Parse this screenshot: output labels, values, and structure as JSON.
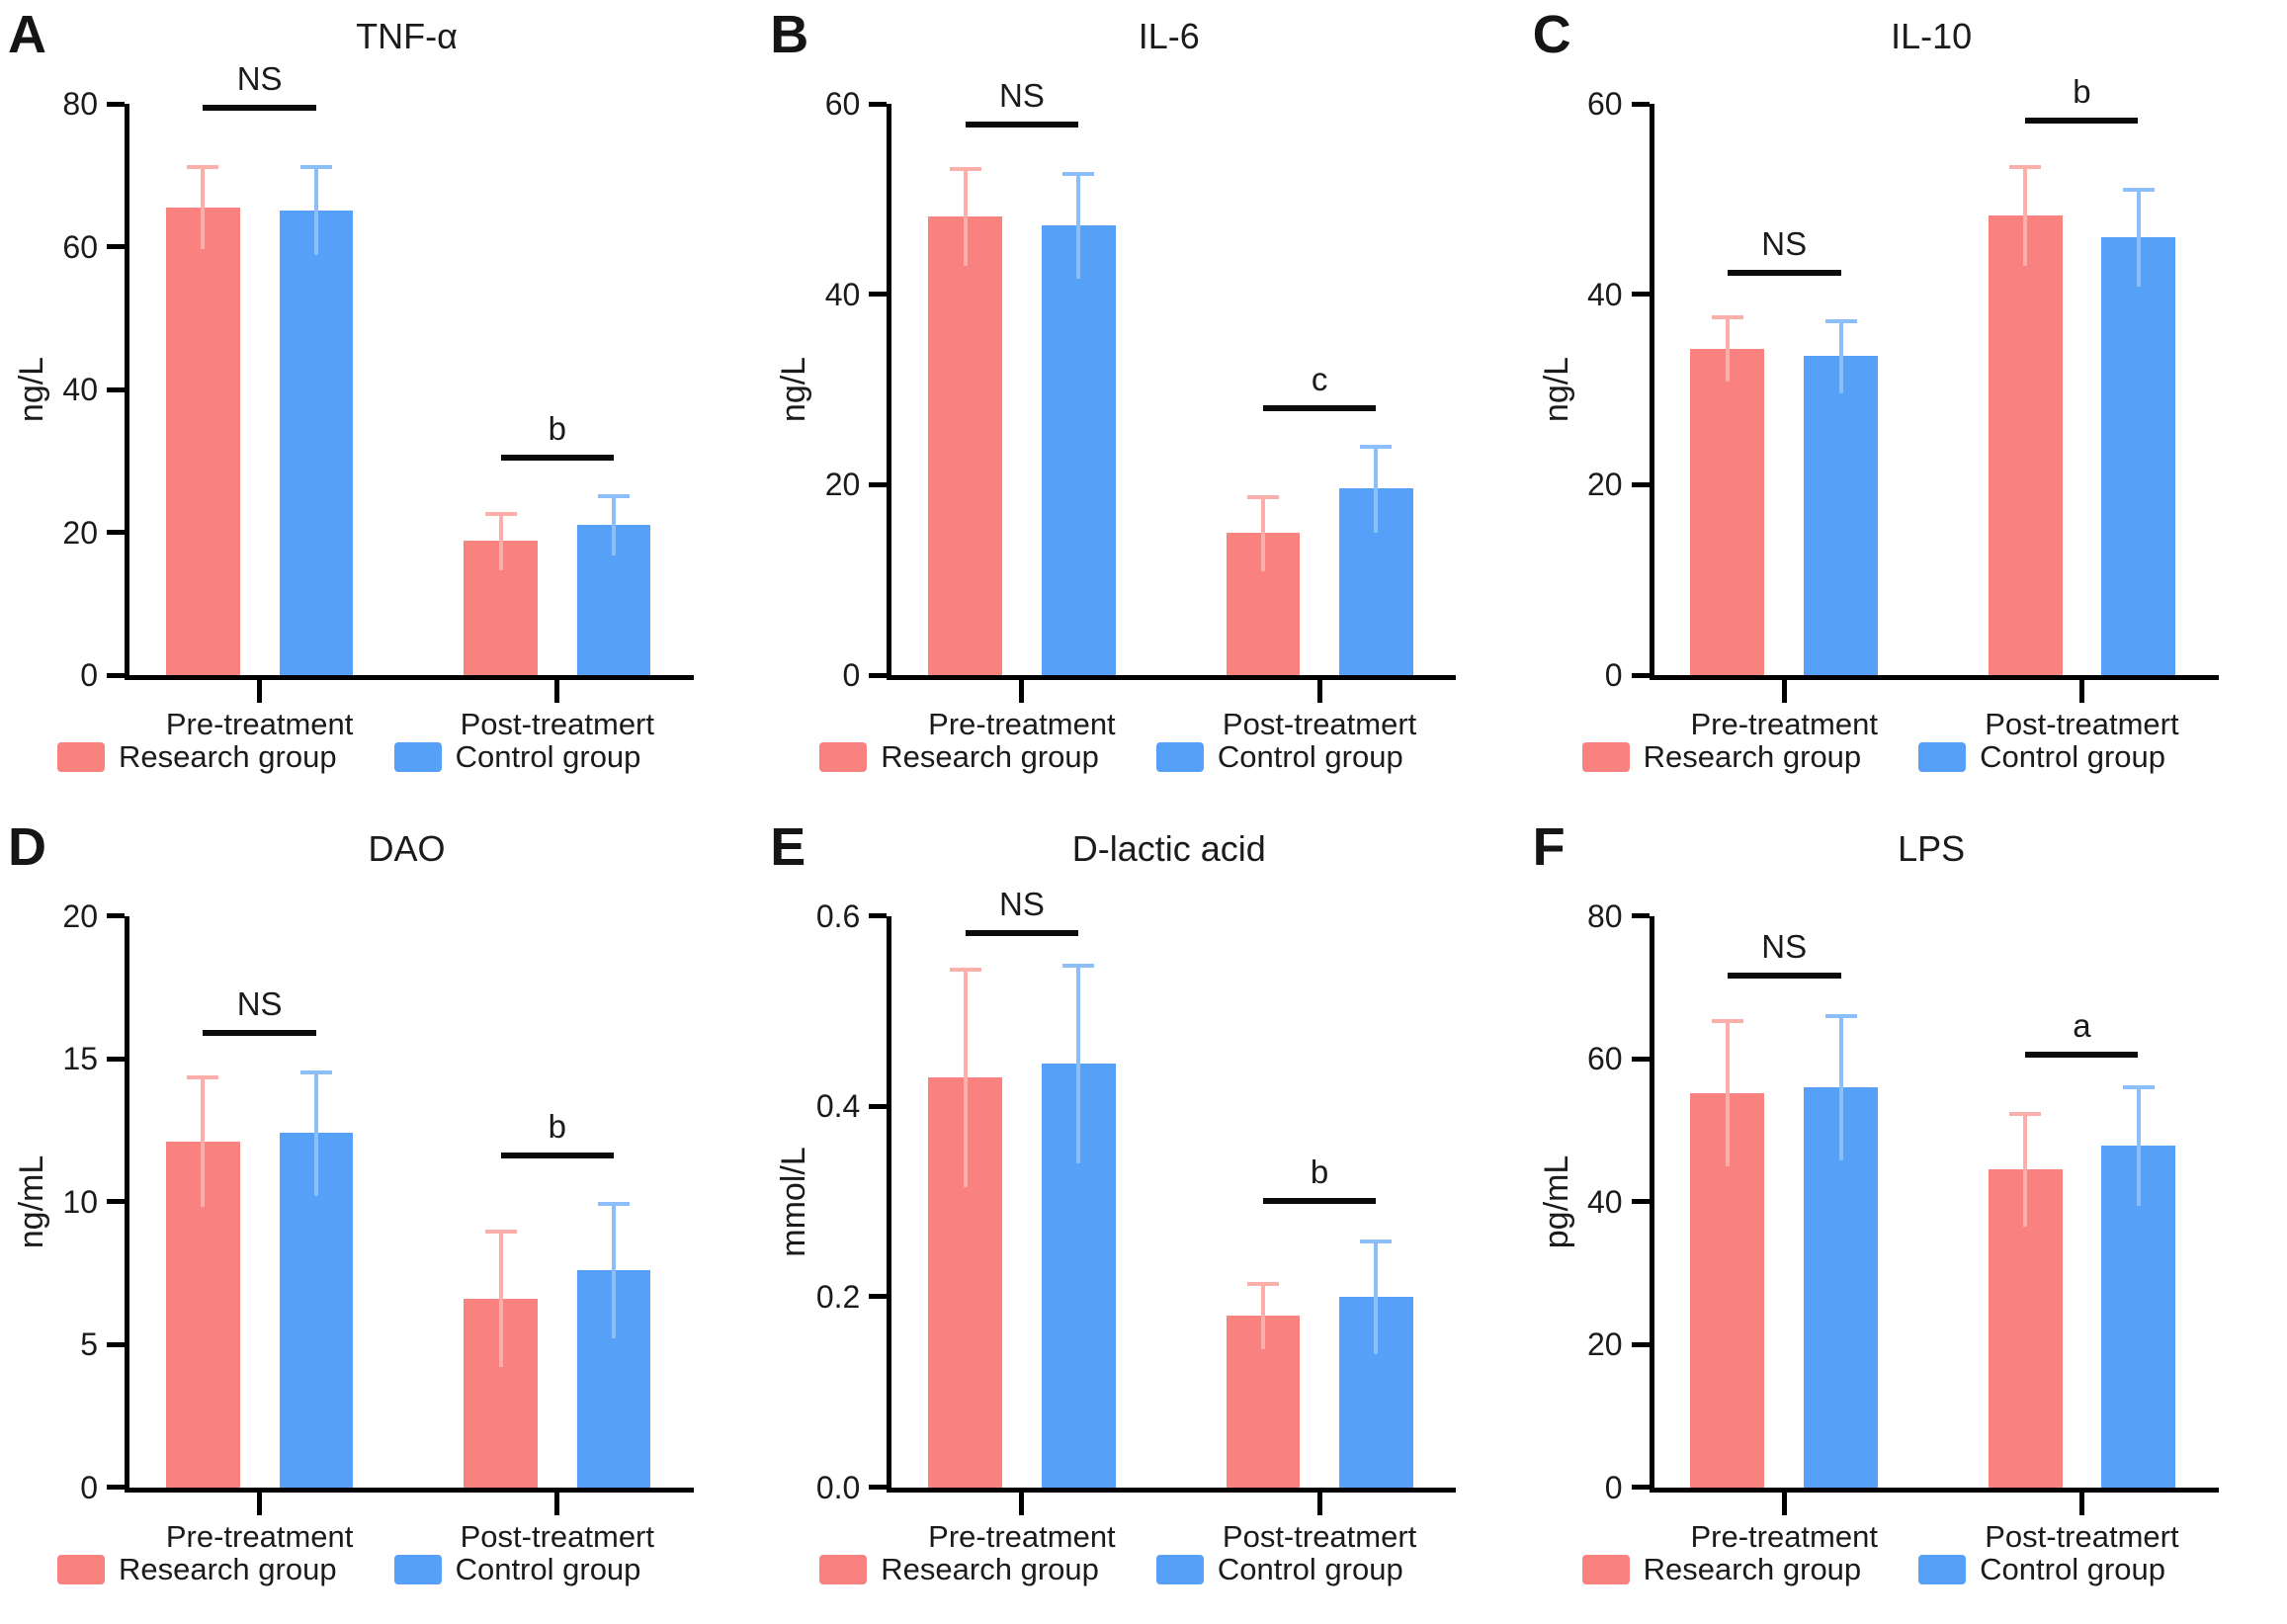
{
  "colors": {
    "research": "#F98280",
    "control": "#57A0F7",
    "research_err": "#FCAEAA",
    "control_err": "#8CBEFA",
    "axis": "#000000",
    "sig_bar": "#0B0B0B",
    "text": "#1C1A1A"
  },
  "legend": [
    {
      "label": "Research group",
      "color_key": "research",
      "swatch": "red-swatch"
    },
    {
      "label": "Control group",
      "color_key": "control",
      "swatch": "blue-swatch"
    }
  ],
  "chart_data": [
    {
      "panel": "A",
      "type": "bar",
      "title": "TNF-α",
      "ylabel": "ng/L",
      "ylim": [
        0,
        80
      ],
      "yticks": [
        "0",
        "20",
        "40",
        "60",
        "80"
      ],
      "categories": [
        "Pre-treatment",
        "Post-treatmert"
      ],
      "series": [
        {
          "name": "Research group",
          "values": [
            65.5,
            18.8
          ],
          "errors": [
            5.9,
            4.1
          ]
        },
        {
          "name": "Control group",
          "values": [
            65.1,
            21.0
          ],
          "errors": [
            6.3,
            4.3
          ]
        }
      ],
      "significance": [
        {
          "category": "Pre-treatment",
          "label": "NS",
          "bar_y": 79.5
        },
        {
          "category": "Post-treatmert",
          "label": "b",
          "bar_y": 30.5
        }
      ]
    },
    {
      "panel": "B",
      "type": "bar",
      "title": "IL-6",
      "ylabel": "ng/L",
      "ylim": [
        0,
        60
      ],
      "yticks": [
        "0",
        "20",
        "40",
        "60"
      ],
      "categories": [
        "Pre-treatment",
        "Post-treatmert"
      ],
      "series": [
        {
          "name": "Research group",
          "values": [
            48.2,
            14.9
          ],
          "errors": [
            5.2,
            4.0
          ]
        },
        {
          "name": "Control group",
          "values": [
            47.2,
            19.6
          ],
          "errors": [
            5.6,
            4.6
          ]
        }
      ],
      "significance": [
        {
          "category": "Pre-treatment",
          "label": "NS",
          "bar_y": 57.8
        },
        {
          "category": "Post-treatmert",
          "label": "c",
          "bar_y": 28.0
        }
      ]
    },
    {
      "panel": "C",
      "type": "bar",
      "title": "IL-10",
      "ylabel": "ng/L",
      "ylim": [
        0,
        60
      ],
      "yticks": [
        "0",
        "20",
        "40",
        "60"
      ],
      "categories": [
        "Pre-treatment",
        "Post-treatmert"
      ],
      "series": [
        {
          "name": "Research group",
          "values": [
            34.3,
            48.3
          ],
          "errors": [
            3.5,
            5.3
          ]
        },
        {
          "name": "Control group",
          "values": [
            33.5,
            46.0
          ],
          "errors": [
            3.9,
            5.2
          ]
        }
      ],
      "significance": [
        {
          "category": "Pre-treatment",
          "label": "NS",
          "bar_y": 42.3
        },
        {
          "category": "Post-treatmert",
          "label": "b",
          "bar_y": 58.2
        }
      ]
    },
    {
      "panel": "D",
      "type": "bar",
      "title": "DAO",
      "ylabel": "ng/mL",
      "ylim": [
        0,
        20
      ],
      "yticks": [
        "0",
        "5",
        "10",
        "15",
        "20"
      ],
      "categories": [
        "Pre-treatment",
        "Post-treatmert"
      ],
      "series": [
        {
          "name": "Research group",
          "values": [
            12.1,
            6.6
          ],
          "errors": [
            2.3,
            2.4
          ]
        },
        {
          "name": "Control group",
          "values": [
            12.4,
            7.6
          ],
          "errors": [
            2.2,
            2.4
          ]
        }
      ],
      "significance": [
        {
          "category": "Pre-treatment",
          "label": "NS",
          "bar_y": 15.9
        },
        {
          "category": "Post-treatmert",
          "label": "b",
          "bar_y": 11.6
        }
      ]
    },
    {
      "panel": "E",
      "type": "bar",
      "title": "D-lactic acid",
      "ylabel": "mmol/L",
      "ylim": [
        0,
        0.6
      ],
      "yticks": [
        "0.0",
        "0.2",
        "0.4",
        "0.6"
      ],
      "categories": [
        "Pre-treatment",
        "Post-treatmert"
      ],
      "series": [
        {
          "name": "Research group",
          "values": [
            0.43,
            0.18
          ],
          "errors": [
            0.115,
            0.035
          ]
        },
        {
          "name": "Control group",
          "values": [
            0.445,
            0.2
          ],
          "errors": [
            0.105,
            0.06
          ]
        }
      ],
      "significance": [
        {
          "category": "Pre-treatment",
          "label": "NS",
          "bar_y": 0.582
        },
        {
          "category": "Post-treatmert",
          "label": "b",
          "bar_y": 0.301
        }
      ]
    },
    {
      "panel": "F",
      "type": "bar",
      "title": "LPS",
      "ylabel": "pg/mL",
      "ylim": [
        0,
        80
      ],
      "yticks": [
        "0",
        "20",
        "40",
        "60",
        "80"
      ],
      "categories": [
        "Pre-treatment",
        "Post-treatmert"
      ],
      "series": [
        {
          "name": "Research group",
          "values": [
            55.2,
            44.5
          ],
          "errors": [
            10.3,
            8.0
          ]
        },
        {
          "name": "Control group",
          "values": [
            56.0,
            47.8
          ],
          "errors": [
            10.2,
            8.4
          ]
        }
      ],
      "significance": [
        {
          "category": "Pre-treatment",
          "label": "NS",
          "bar_y": 71.6
        },
        {
          "category": "Post-treatmert",
          "label": "a",
          "bar_y": 60.5
        }
      ]
    }
  ]
}
